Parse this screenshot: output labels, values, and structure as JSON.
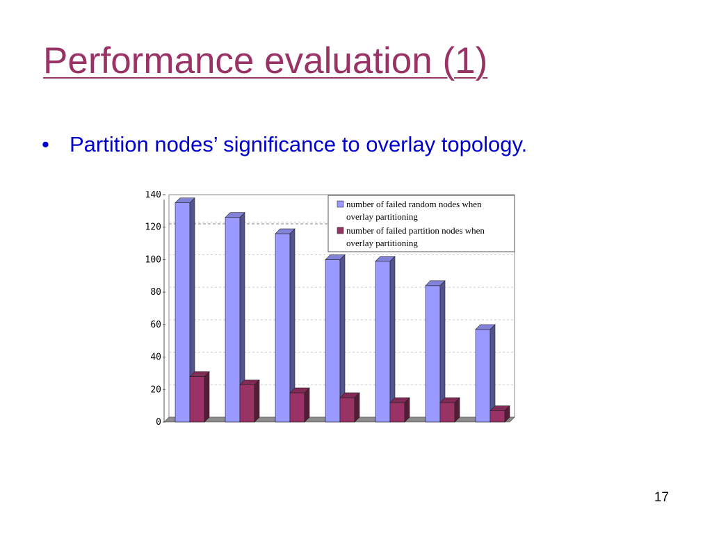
{
  "slide": {
    "title": "Performance evaluation (1)",
    "bullet_marker": "•",
    "bullet_text": "Partition nodes’ significance to overlay topology.",
    "page_number": "17"
  },
  "colors": {
    "title": "#993366",
    "bullet": "#0000cc",
    "series_random": "#9999ff",
    "series_partition": "#993366"
  },
  "chart_data": {
    "type": "bar",
    "title": "",
    "xlabel": "",
    "ylabel": "",
    "ylim": [
      0,
      140
    ],
    "yticks": [
      "0",
      "20",
      "40",
      "60",
      "80",
      "100",
      "120",
      "140"
    ],
    "categories": [
      "",
      "",
      "",
      "",
      "",
      "",
      ""
    ],
    "series": [
      {
        "name": "number of failed random nodes when overlay partitioning",
        "values": [
          135,
          126,
          116,
          100,
          99,
          84,
          57
        ]
      },
      {
        "name": "number of failed partition nodes when overlay partitioning",
        "values": [
          28,
          23,
          18,
          15,
          12,
          12,
          7
        ]
      }
    ],
    "legend_position": "top-right",
    "grid": true,
    "reference_line": 122
  }
}
